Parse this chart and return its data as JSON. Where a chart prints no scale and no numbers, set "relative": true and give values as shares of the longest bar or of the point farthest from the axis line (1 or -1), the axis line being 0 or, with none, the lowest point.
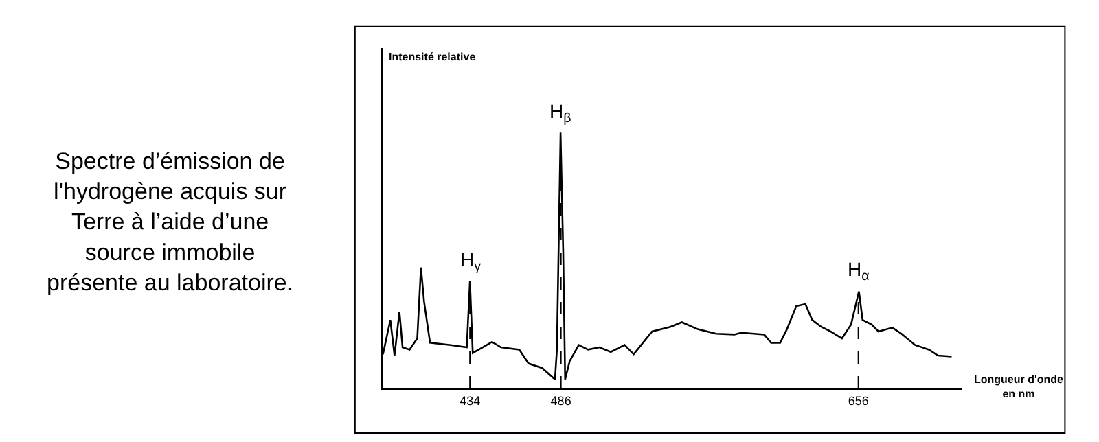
{
  "chart_data": {
    "type": "line",
    "relative": true,
    "xlabel": "Longueur d'onde\nen nm",
    "x": [
      384.3,
      388.5,
      390.9,
      393.7,
      395.5,
      399.5,
      403.9,
      406.0,
      407.8,
      411.2,
      423.0,
      432.2,
      434.0,
      435.6,
      441.3,
      446.6,
      451.8,
      462.2,
      467.5,
      475.3,
      482.6,
      483.7,
      485.8,
      487.3,
      488.4,
      491.0,
      496.2,
      501.5,
      508.0,
      514.5,
      522.4,
      527.6,
      538.1,
      548.5,
      555.1,
      564.2,
      574.7,
      585.1,
      589.1,
      602.2,
      606.1,
      611.3,
      615.2,
      620.5,
      625.7,
      629.6,
      634.8,
      640.1,
      646.6,
      651.8,
      656.3,
      658.4,
      663.6,
      667.5,
      675.4,
      680.6,
      688.4,
      696.3,
      701.5,
      709.3
    ],
    "series": [
      {
        "color": "#000000",
        "values": [
          0.134,
          0.268,
          0.129,
          0.3,
          0.161,
          0.152,
          0.196,
          0.473,
          0.339,
          0.179,
          0.17,
          0.161,
          0.42,
          0.139,
          0.161,
          0.182,
          0.161,
          0.152,
          0.098,
          0.08,
          0.036,
          0.152,
          1.0,
          0.536,
          0.036,
          0.107,
          0.17,
          0.152,
          0.161,
          0.143,
          0.17,
          0.134,
          0.223,
          0.241,
          0.259,
          0.232,
          0.214,
          0.211,
          0.218,
          0.211,
          0.179,
          0.179,
          0.232,
          0.322,
          0.33,
          0.268,
          0.241,
          0.223,
          0.196,
          0.25,
          0.379,
          0.268,
          0.25,
          0.223,
          0.238,
          0.214,
          0.17,
          0.152,
          0.129,
          0.125
        ]
      }
    ],
    "xlim": [
      384,
      715
    ],
    "xticks": [
      434,
      486,
      656
    ],
    "ref_lines": [
      {
        "axis": "x",
        "value": 434,
        "line_style": "dashed"
      },
      {
        "axis": "x",
        "value": 486,
        "line_style": "dashed"
      },
      {
        "axis": "x",
        "value": 656,
        "line_style": "dashed"
      }
    ],
    "annotations": [
      "Spectre d’émission de\nl'hydrogène acquis sur\nTerre à l’aide d’une\nsource immobile\nprésente au laboratoire.",
      "Intensité relative",
      {
        "text": "H$_{γ}$",
        "x": 434,
        "y": 0.42
      },
      {
        "text": "H$_{β}$",
        "x": 485.8,
        "y": 1.0
      },
      {
        "text": "H$_{α}$",
        "x": 656.3,
        "y": 0.379
      }
    ]
  }
}
